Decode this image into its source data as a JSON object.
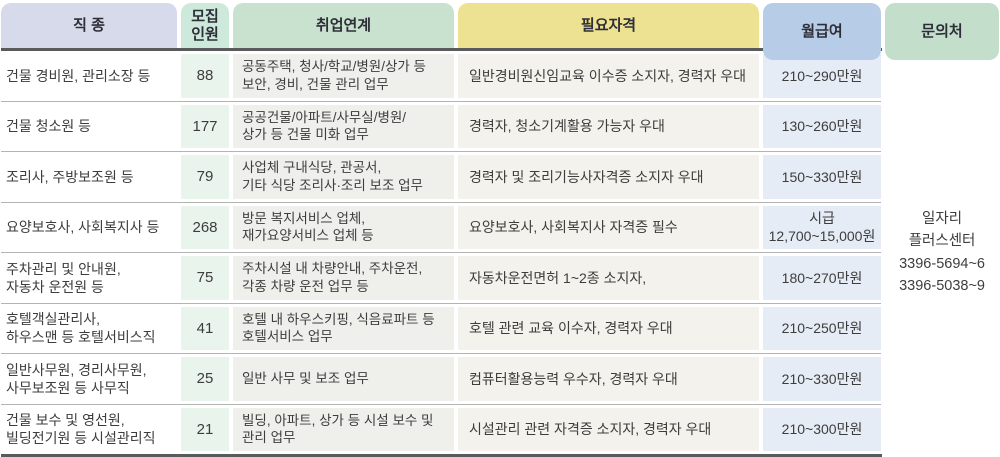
{
  "table": {
    "headers": [
      {
        "label": "직 종"
      },
      {
        "label": "모집\n인원"
      },
      {
        "label": "취업연계"
      },
      {
        "label": "필요자격"
      },
      {
        "label": "월급여"
      },
      {
        "label": "문의처"
      }
    ],
    "rows": [
      {
        "job": "건물 경비원, 관리소장 등",
        "count": "88",
        "work": "공동주택, 청사/학교/병원/상가 등\n보안, 경비, 건물 관리 업무",
        "qualification": "일반경비원신임교육 이수증 소지자, 경력자 우대",
        "salary": "210~290만원"
      },
      {
        "job": "건물 청소원 등",
        "count": "177",
        "work": "공공건물/아파트/사무실/병원/\n상가 등 건물 미화 업무",
        "qualification": "경력자, 청소기계활용 가능자 우대",
        "salary": "130~260만원"
      },
      {
        "job": "조리사, 주방보조원 등",
        "count": "79",
        "work": "사업체 구내식당, 관공서,\n기타 식당 조리사·조리 보조 업무",
        "qualification": "경력자 및 조리기능사자격증 소지자 우대",
        "salary": "150~330만원"
      },
      {
        "job": "요양보호사, 사회복지사 등",
        "count": "268",
        "work": "방문 복지서비스 업체,\n재가요양서비스 업체 등",
        "qualification": "요양보호사, 사회복지사 자격증 필수",
        "salary": "시급\n12,700~15,000원"
      },
      {
        "job": "주차관리 및 안내원,\n자동차 운전원 등",
        "count": "75",
        "work": "주차시설 내 차량안내, 주차운전,\n각종 차량 운전 업무 등",
        "qualification": "자동차운전면허 1~2종 소지자,",
        "salary": "180~270만원"
      },
      {
        "job": "호텔객실관리사,\n하우스맨 등 호텔서비스직",
        "count": "41",
        "work": "호텔 내 하우스키핑, 식음료파트 등\n호텔서비스 업무",
        "qualification": "호텔 관련 교육 이수자, 경력자 우대",
        "salary": "210~250만원"
      },
      {
        "job": "일반사무원, 경리사무원,\n사무보조원 등 사무직",
        "count": "25",
        "work": "일반 사무 및 보조 업무",
        "qualification": "컴퓨터활용능력 우수자, 경력자 우대",
        "salary": "210~330만원"
      },
      {
        "job": "건물 보수 및 영선원,\n빌딩전기원 등 시설관리직",
        "count": "21",
        "work": "빌딩, 아파트, 상가 등 시설 보수 및\n관리 업무",
        "qualification": "시설관리 관련 자격증 소지자, 경력자 우대",
        "salary": "210~300만원"
      }
    ],
    "contact": "일자리\n플러스센터\n3396-5694~6\n3396-5038~9"
  },
  "colors": {
    "header_job": "#d7daea",
    "header_count": "#cde9db",
    "header_work": "#c8e2cf",
    "header_qualification": "#ece292",
    "header_salary": "#b7cde7",
    "header_contact": "#c3decb",
    "rule": "#595a5c"
  }
}
